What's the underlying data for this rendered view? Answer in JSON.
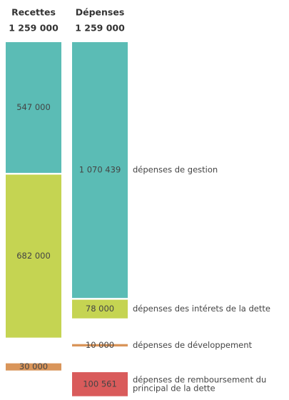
{
  "chart_data": {
    "type": "stacked-column",
    "columns": [
      {
        "name": "Recettes",
        "total_label": "1 259 000",
        "groups": [
          [
            {
              "value": 547000,
              "value_label": "547 000",
              "color": "#5bbcb5"
            },
            {
              "value": 682000,
              "value_label": "682 000",
              "color": "#c5d452"
            }
          ],
          [
            {
              "value": 30000,
              "value_label": "30 000",
              "color": "#d9955a"
            }
          ]
        ]
      },
      {
        "name": "Dépenses",
        "total_label": "1 259 000",
        "groups": [
          [
            {
              "value": 1070439,
              "value_label": "1 070 439",
              "color": "#5bbcb5",
              "label": [
                "dépenses de gestion"
              ]
            },
            {
              "value": 78000,
              "value_label": "78 000",
              "color": "#c5d452",
              "label": [
                "dépenses des intérets de la dette"
              ]
            }
          ],
          [
            {
              "value": 10000,
              "value_label": "10 000",
              "color": "#d9955a",
              "label": [
                "dépenses de développement"
              ]
            }
          ],
          [
            {
              "value": 100561,
              "value_label": "100 561",
              "color": "#d95b5b",
              "label": [
                "dépenses de remboursement du",
                "principal de la dette"
              ]
            }
          ]
        ]
      }
    ]
  }
}
